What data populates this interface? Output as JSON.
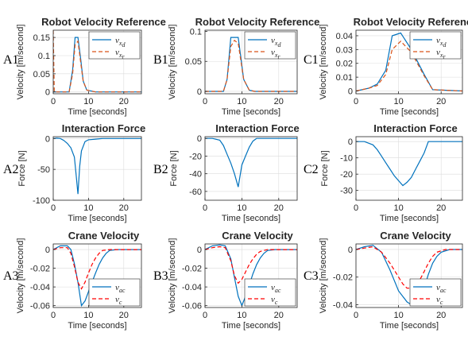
{
  "chart_data": [
    {
      "id": "A1",
      "type": "line",
      "panel_label": "A1",
      "kind": "ref",
      "title": "Robot Velocity Reference",
      "xlabel": "Time [seconds]",
      "ylabel": "Velocity [m/second]",
      "xlim": [
        0,
        25
      ],
      "ylim": [
        -0.005,
        0.17
      ],
      "xticks": [
        0,
        10,
        20
      ],
      "yticks": [
        0,
        0.05,
        0.1,
        0.15
      ],
      "ytick_labels": [
        "0",
        "0.05",
        "0.1",
        "0.15"
      ],
      "grid": true,
      "legend_position": "top-right",
      "series": [
        {
          "name": "v_x_d",
          "color": "#0072BD",
          "dash": "solid",
          "x": [
            0,
            4.5,
            5.5,
            6.2,
            7.0,
            7.8,
            8.5,
            9.5,
            12,
            25
          ],
          "y": [
            0,
            0,
            0.06,
            0.15,
            0.15,
            0.09,
            0.03,
            0.005,
            0,
            0
          ]
        },
        {
          "name": "v_x_r",
          "color": "#D95319",
          "dash": "dashed",
          "x": [
            0,
            0.3,
            4.5,
            5.5,
            6.2,
            7.0,
            7.8,
            8.5,
            9.5,
            12,
            25
          ],
          "y": [
            0.17,
            0,
            0,
            0.05,
            0.13,
            0.14,
            0.08,
            0.03,
            0.005,
            0,
            0
          ]
        }
      ]
    },
    {
      "id": "B1",
      "type": "line",
      "panel_label": "B1",
      "kind": "ref",
      "title": "Robot Velocity Reference",
      "xlabel": "Time [seconds]",
      "ylabel": "Velocity [m/second]",
      "xlim": [
        0,
        25
      ],
      "ylim": [
        -0.004,
        0.102
      ],
      "xticks": [
        0,
        10,
        20
      ],
      "yticks": [
        0,
        0.05,
        0.1
      ],
      "ytick_labels": [
        "0",
        "0.05",
        "0.1"
      ],
      "grid": true,
      "legend_position": "top-right",
      "series": [
        {
          "name": "v_x_d",
          "color": "#0072BD",
          "dash": "solid",
          "x": [
            0,
            5,
            6,
            7,
            9,
            10.5,
            12,
            13.5,
            25
          ],
          "y": [
            0,
            0,
            0.02,
            0.09,
            0.09,
            0.02,
            0.002,
            0,
            0
          ]
        },
        {
          "name": "v_x_r",
          "color": "#D95319",
          "dash": "dashed",
          "x": [
            0,
            5,
            6,
            7,
            8,
            9,
            10.5,
            12,
            13.5,
            25
          ],
          "y": [
            0,
            0,
            0.02,
            0.075,
            0.085,
            0.08,
            0.02,
            0.002,
            0,
            0
          ]
        }
      ]
    },
    {
      "id": "C1",
      "type": "line",
      "panel_label": "C1",
      "kind": "ref",
      "title": "Robot Velocity Reference",
      "xlabel": "Time [seconds]",
      "ylabel": "Velocity [m/second]",
      "xlim": [
        0,
        25
      ],
      "ylim": [
        -0.002,
        0.044
      ],
      "xticks": [
        0,
        10,
        20
      ],
      "yticks": [
        0,
        0.01,
        0.02,
        0.03,
        0.04
      ],
      "ytick_labels": [
        "0",
        "0.01",
        "0.02",
        "0.03",
        "0.04"
      ],
      "grid": true,
      "legend_position": "top-right",
      "series": [
        {
          "name": "v_x_d",
          "color": "#0072BD",
          "dash": "solid",
          "x": [
            0,
            3,
            5,
            7,
            8.5,
            10.5,
            13,
            16,
            18,
            25
          ],
          "y": [
            0,
            0.002,
            0.005,
            0.015,
            0.04,
            0.042,
            0.03,
            0.012,
            0.001,
            0
          ]
        },
        {
          "name": "v_x_r",
          "color": "#D95319",
          "dash": "dashed",
          "x": [
            0,
            3,
            5,
            7,
            8.5,
            10.5,
            13,
            16,
            18,
            25
          ],
          "y": [
            0,
            0.002,
            0.004,
            0.012,
            0.03,
            0.036,
            0.028,
            0.011,
            0.001,
            0
          ]
        }
      ]
    },
    {
      "id": "A2",
      "type": "line",
      "panel_label": "A2",
      "kind": "force",
      "title": "Interaction Force",
      "xlabel": "Time [seconds]",
      "ylabel": "Force [N]",
      "xlim": [
        0,
        25
      ],
      "ylim": [
        -100,
        3
      ],
      "xticks": [
        0,
        10,
        20
      ],
      "yticks": [
        0,
        -50,
        -100
      ],
      "ytick_labels": [
        "0",
        "-50",
        "-100"
      ],
      "grid": true,
      "legend_position": "none",
      "series": [
        {
          "name": "",
          "color": "#0072BD",
          "dash": "solid",
          "x": [
            0,
            1,
            2,
            3,
            4,
            5,
            6,
            6.5,
            7,
            7.5,
            8,
            9,
            10,
            12,
            14,
            25
          ],
          "y": [
            0,
            0.5,
            0,
            -3,
            -8,
            -15,
            -30,
            -60,
            -90,
            -45,
            -20,
            -5,
            -2,
            -1,
            0,
            0
          ]
        }
      ]
    },
    {
      "id": "B2",
      "type": "line",
      "panel_label": "B2",
      "kind": "force",
      "title": "Interaction Force",
      "xlabel": "Time [seconds]",
      "ylabel": "Force [N]",
      "xlim": [
        0,
        25
      ],
      "ylim": [
        -70,
        2
      ],
      "xticks": [
        0,
        10,
        20
      ],
      "yticks": [
        0,
        -20,
        -40,
        -60
      ],
      "ytick_labels": [
        "0",
        "-20",
        "-40",
        "-60"
      ],
      "grid": true,
      "legend_position": "none",
      "series": [
        {
          "name": "",
          "color": "#0072BD",
          "dash": "solid",
          "x": [
            0,
            2,
            4,
            5,
            6,
            7,
            8,
            9,
            10,
            11,
            12,
            13,
            14,
            25
          ],
          "y": [
            0,
            0,
            -2,
            -8,
            -18,
            -28,
            -40,
            -55,
            -30,
            -20,
            -10,
            -3,
            0,
            0
          ]
        }
      ]
    },
    {
      "id": "C2",
      "type": "line",
      "panel_label": "C2",
      "kind": "force",
      "title": "Interaction Force",
      "xlabel": "Time [seconds]",
      "ylabel": "Force [N]",
      "xlim": [
        0,
        25
      ],
      "ylim": [
        -36,
        3
      ],
      "xticks": [
        0,
        10,
        20
      ],
      "yticks": [
        0,
        -10,
        -20,
        -30
      ],
      "ytick_labels": [
        "0",
        "-10",
        "-20",
        "-30"
      ],
      "grid": true,
      "legend_position": "none",
      "series": [
        {
          "name": "",
          "color": "#0072BD",
          "dash": "solid",
          "x": [
            0,
            2,
            4,
            5,
            6,
            7,
            8,
            9,
            10,
            11,
            12,
            13,
            14,
            15,
            16,
            17,
            25
          ],
          "y": [
            0,
            0,
            -2,
            -5,
            -9,
            -13,
            -17,
            -21,
            -24,
            -27,
            -25,
            -22,
            -17,
            -12,
            -7,
            0,
            0
          ]
        }
      ]
    },
    {
      "id": "A3",
      "type": "line",
      "panel_label": "A3",
      "kind": "crane",
      "title": "Crane Velocity",
      "xlabel": "Time [seconds]",
      "ylabel": "Velocity [m/second]",
      "xlim": [
        0,
        25
      ],
      "ylim": [
        -0.062,
        0.006
      ],
      "xticks": [
        0,
        10,
        20
      ],
      "yticks": [
        0,
        -0.02,
        -0.04,
        -0.06
      ],
      "ytick_labels": [
        "0",
        "-0.02",
        "-0.04",
        "-0.06"
      ],
      "grid": true,
      "legend_position": "bottom-right",
      "series": [
        {
          "name": "v_ac",
          "color": "#0072BD",
          "dash": "solid",
          "x": [
            0,
            2,
            4,
            5,
            6,
            7,
            8,
            9,
            10,
            11,
            12,
            13,
            14,
            15,
            16,
            18,
            25
          ],
          "y": [
            0,
            0.004,
            0.004,
            0.0,
            -0.015,
            -0.035,
            -0.06,
            -0.055,
            -0.045,
            -0.035,
            -0.025,
            -0.016,
            -0.009,
            -0.004,
            -0.001,
            0,
            0
          ]
        },
        {
          "name": "v_c",
          "color": "#FF0000",
          "dash": "dashed",
          "x": [
            0,
            2,
            4,
            5,
            6,
            7,
            8,
            9,
            10,
            11,
            12,
            13,
            14,
            16,
            25
          ],
          "y": [
            0,
            0.002,
            0.002,
            -0.004,
            -0.018,
            -0.035,
            -0.042,
            -0.035,
            -0.025,
            -0.016,
            -0.009,
            -0.004,
            -0.001,
            0,
            0
          ]
        }
      ]
    },
    {
      "id": "B3",
      "type": "line",
      "panel_label": "B3",
      "kind": "crane",
      "title": "Crane Velocity",
      "xlabel": "Time [seconds]",
      "ylabel": "Velocity [m/second]",
      "xlim": [
        0,
        25
      ],
      "ylim": [
        -0.062,
        0.006
      ],
      "xticks": [
        0,
        10,
        20
      ],
      "yticks": [
        0,
        -0.02,
        -0.04,
        -0.06
      ],
      "ytick_labels": [
        "0",
        "-0.02",
        "-0.04",
        "-0.06"
      ],
      "grid": true,
      "legend_position": "bottom-right",
      "series": [
        {
          "name": "v_ac",
          "color": "#0072BD",
          "dash": "solid",
          "x": [
            0,
            2,
            4,
            5.5,
            7,
            8,
            9,
            10,
            11,
            12,
            13,
            14,
            15,
            16,
            17,
            19,
            25
          ],
          "y": [
            0,
            0.004,
            0.005,
            0.004,
            -0.01,
            -0.03,
            -0.05,
            -0.06,
            -0.05,
            -0.038,
            -0.026,
            -0.016,
            -0.009,
            -0.004,
            -0.001,
            0,
            0
          ]
        },
        {
          "name": "v_c",
          "color": "#FF0000",
          "dash": "dashed",
          "x": [
            0,
            2,
            4,
            5.5,
            7,
            8,
            9,
            10,
            11,
            12,
            13,
            14,
            15,
            17,
            25
          ],
          "y": [
            0,
            0.002,
            0.003,
            0.002,
            -0.012,
            -0.028,
            -0.036,
            -0.032,
            -0.024,
            -0.016,
            -0.01,
            -0.005,
            -0.002,
            0,
            0
          ]
        }
      ]
    },
    {
      "id": "C3",
      "type": "line",
      "panel_label": "C3",
      "kind": "crane",
      "title": "Crane Velocity",
      "xlabel": "Time [seconds]",
      "ylabel": "Velocity [m/second]",
      "xlim": [
        0,
        25
      ],
      "ylim": [
        -0.042,
        0.004
      ],
      "xticks": [
        0,
        10,
        20
      ],
      "yticks": [
        0,
        -0.02,
        -0.04
      ],
      "ytick_labels": [
        "0",
        "-0.02",
        "-0.04"
      ],
      "grid": true,
      "legend_position": "bottom-right",
      "series": [
        {
          "name": "v_ac",
          "color": "#0072BD",
          "dash": "solid",
          "x": [
            0,
            2,
            4,
            6,
            8,
            10,
            12,
            13,
            14,
            15,
            16,
            17,
            18,
            19,
            20,
            22,
            25
          ],
          "y": [
            0,
            0.002,
            0.003,
            -0.002,
            -0.015,
            -0.03,
            -0.038,
            -0.04,
            -0.04,
            -0.036,
            -0.028,
            -0.018,
            -0.01,
            -0.005,
            -0.002,
            0,
            0
          ]
        },
        {
          "name": "v_c",
          "color": "#FF0000",
          "dash": "dashed",
          "x": [
            0,
            2,
            4,
            6,
            8,
            10,
            11,
            12,
            13,
            14,
            15,
            16,
            17,
            18,
            19,
            21,
            25
          ],
          "y": [
            0,
            0.001,
            0.002,
            -0.002,
            -0.01,
            -0.02,
            -0.025,
            -0.028,
            -0.028,
            -0.026,
            -0.022,
            -0.016,
            -0.01,
            -0.005,
            -0.002,
            0,
            0
          ]
        }
      ]
    }
  ]
}
